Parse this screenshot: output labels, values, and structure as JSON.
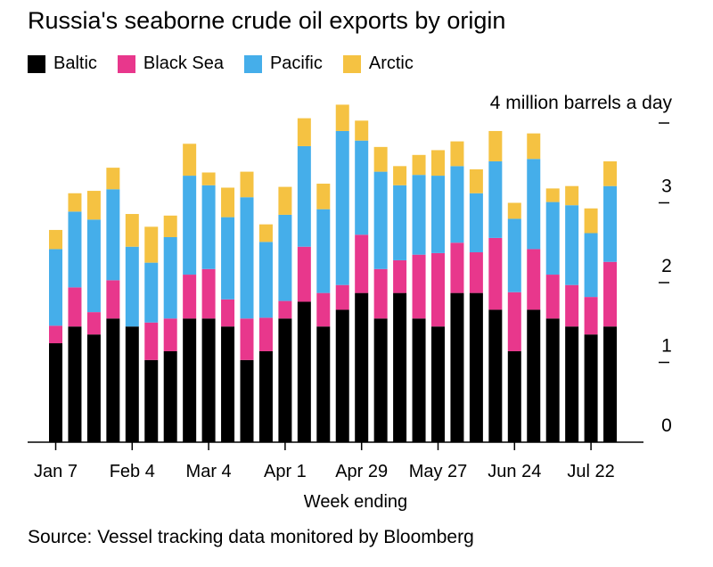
{
  "title": "Russia's seaborne crude oil exports by origin",
  "legend": [
    {
      "label": "Baltic",
      "color": "#000000"
    },
    {
      "label": "Black Sea",
      "color": "#e8378c"
    },
    {
      "label": "Pacific",
      "color": "#45aeea"
    },
    {
      "label": "Arctic",
      "color": "#f5c242"
    }
  ],
  "source": "Source: Vessel tracking data monitored by Bloomberg",
  "chart_data": {
    "type": "bar",
    "stacked": true,
    "y_unit_label": "4 million barrels a day",
    "xlabel": "Week ending",
    "ylim": [
      0,
      4
    ],
    "yticks": [
      0,
      1,
      2,
      3,
      4
    ],
    "ytick_labels": [
      "0",
      "1",
      "2",
      "3",
      ""
    ],
    "xtick_labels": [
      "Jan 7",
      "Feb 4",
      "Mar 4",
      "Apr 1",
      "Apr 29",
      "May 27",
      "Jun 24",
      "Jul 22"
    ],
    "xtick_indices": [
      0,
      4,
      8,
      12,
      16,
      20,
      24,
      28
    ],
    "grid": false,
    "series": [
      {
        "name": "Baltic",
        "color": "#000000",
        "values": [
          1.24,
          1.45,
          1.35,
          1.55,
          1.45,
          1.03,
          1.14,
          1.55,
          1.55,
          1.45,
          1.03,
          1.14,
          1.55,
          1.76,
          1.45,
          1.66,
          1.87,
          1.55,
          1.87,
          1.55,
          1.45,
          1.87,
          1.87,
          1.66,
          1.14,
          1.66,
          1.55,
          1.45,
          1.35,
          1.45
        ]
      },
      {
        "name": "Black Sea",
        "color": "#e8378c",
        "values": [
          0.22,
          0.49,
          0.28,
          0.48,
          0.0,
          0.47,
          0.41,
          0.55,
          0.62,
          0.34,
          0.52,
          0.42,
          0.22,
          0.69,
          0.42,
          0.31,
          0.73,
          0.62,
          0.41,
          0.8,
          0.92,
          0.63,
          0.51,
          0.9,
          0.74,
          0.76,
          0.55,
          0.52,
          0.47,
          0.81
        ]
      },
      {
        "name": "Pacific",
        "color": "#45aeea",
        "values": [
          0.96,
          0.95,
          1.16,
          1.14,
          1.0,
          0.75,
          1.02,
          1.24,
          1.05,
          1.03,
          1.52,
          0.95,
          1.08,
          1.26,
          1.05,
          1.93,
          1.18,
          1.22,
          0.94,
          1.0,
          0.97,
          0.96,
          0.74,
          0.96,
          0.92,
          1.13,
          0.91,
          1.0,
          0.8,
          0.95
        ]
      },
      {
        "name": "Arctic",
        "color": "#f5c242",
        "values": [
          0.24,
          0.23,
          0.36,
          0.27,
          0.41,
          0.45,
          0.27,
          0.4,
          0.16,
          0.37,
          0.32,
          0.22,
          0.35,
          0.35,
          0.32,
          0.33,
          0.25,
          0.31,
          0.24,
          0.25,
          0.32,
          0.31,
          0.3,
          0.38,
          0.2,
          0.32,
          0.17,
          0.24,
          0.31,
          0.31
        ]
      }
    ]
  }
}
